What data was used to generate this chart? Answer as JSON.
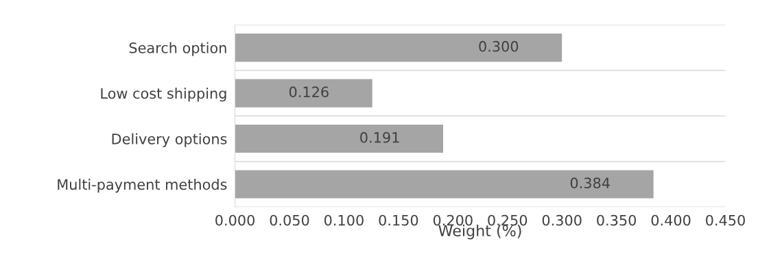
{
  "chart_data": {
    "type": "bar",
    "orientation": "horizontal",
    "xlabel": "Weight (%)",
    "categories": [
      "Search option",
      "Low cost shipping",
      "Delivery options",
      "Multi-payment methods"
    ],
    "values": [
      0.3,
      0.126,
      0.191,
      0.384
    ],
    "value_labels": [
      "0.300",
      "0.126",
      "0.191",
      "0.384"
    ],
    "color": "#a5a5a5",
    "xlim": [
      0,
      0.45
    ],
    "xticks": [
      {
        "value": 0,
        "label": "0.000"
      },
      {
        "value": 0.05,
        "label": "0.050"
      },
      {
        "value": 0.1,
        "label": "0.100"
      },
      {
        "value": 0.15,
        "label": "0.150"
      },
      {
        "value": 0.2,
        "label": "0.200"
      },
      {
        "value": 0.25,
        "label": "0.250"
      },
      {
        "value": 0.3,
        "label": "0.300"
      },
      {
        "value": 0.35,
        "label": "0.350"
      },
      {
        "value": 0.4,
        "label": "0.400"
      },
      {
        "value": 0.45,
        "label": "0.450"
      }
    ],
    "grid": "y",
    "legend": false
  }
}
